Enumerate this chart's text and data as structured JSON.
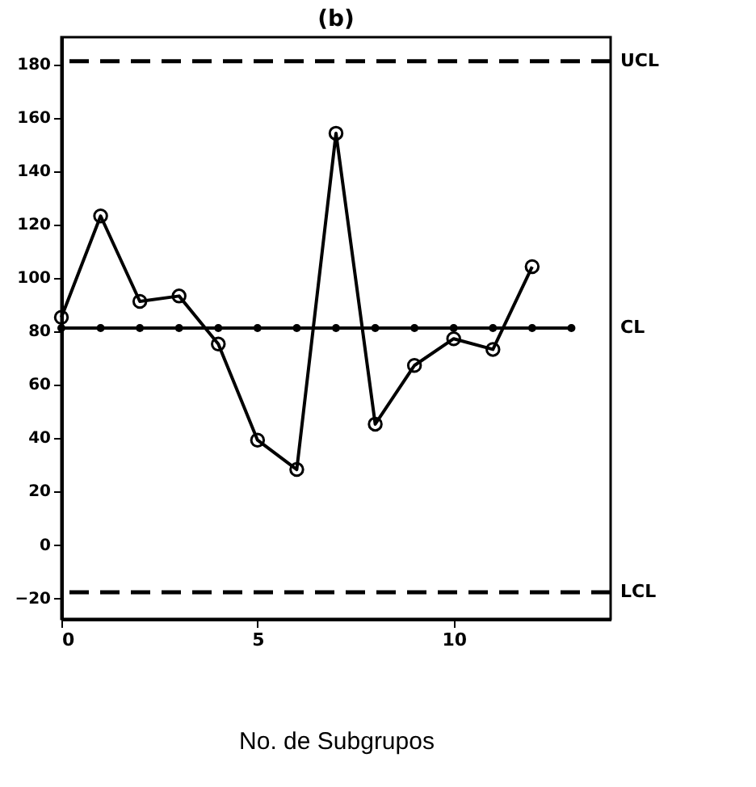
{
  "chart_data": {
    "type": "line",
    "title": "(b)",
    "xlabel": "No. de Subgrupos",
    "xlim": [
      0,
      14
    ],
    "ylim": [
      -28,
      190
    ],
    "xticks": [
      0,
      5,
      10
    ],
    "yticks": [
      -20,
      0,
      20,
      40,
      60,
      80,
      100,
      120,
      140,
      160,
      180
    ],
    "grid": false,
    "series": [
      {
        "color": "#000000",
        "marker": "circle",
        "x": [
          0,
          1,
          2,
          3,
          4,
          5,
          6,
          7,
          8,
          9,
          10,
          11,
          12
        ],
        "values": [
          85,
          123,
          91,
          93,
          75,
          39,
          28,
          154,
          45,
          67,
          77,
          73,
          104
        ]
      },
      {
        "name": "CL",
        "color": "#000000",
        "marker": "circle",
        "x": [
          0,
          1,
          2,
          3,
          4,
          5,
          6,
          7,
          8,
          9,
          10,
          11,
          12,
          13
        ],
        "values": [
          81,
          81,
          81,
          81,
          81,
          81,
          81,
          81,
          81,
          81,
          81,
          81,
          81,
          81
        ]
      }
    ],
    "ref_lines": [
      {
        "axis": "y",
        "value": 181,
        "label": "UCL",
        "line_style": "dashed"
      },
      {
        "axis": "y",
        "value": -18,
        "label": "LCL",
        "line_style": "dashed"
      }
    ]
  }
}
